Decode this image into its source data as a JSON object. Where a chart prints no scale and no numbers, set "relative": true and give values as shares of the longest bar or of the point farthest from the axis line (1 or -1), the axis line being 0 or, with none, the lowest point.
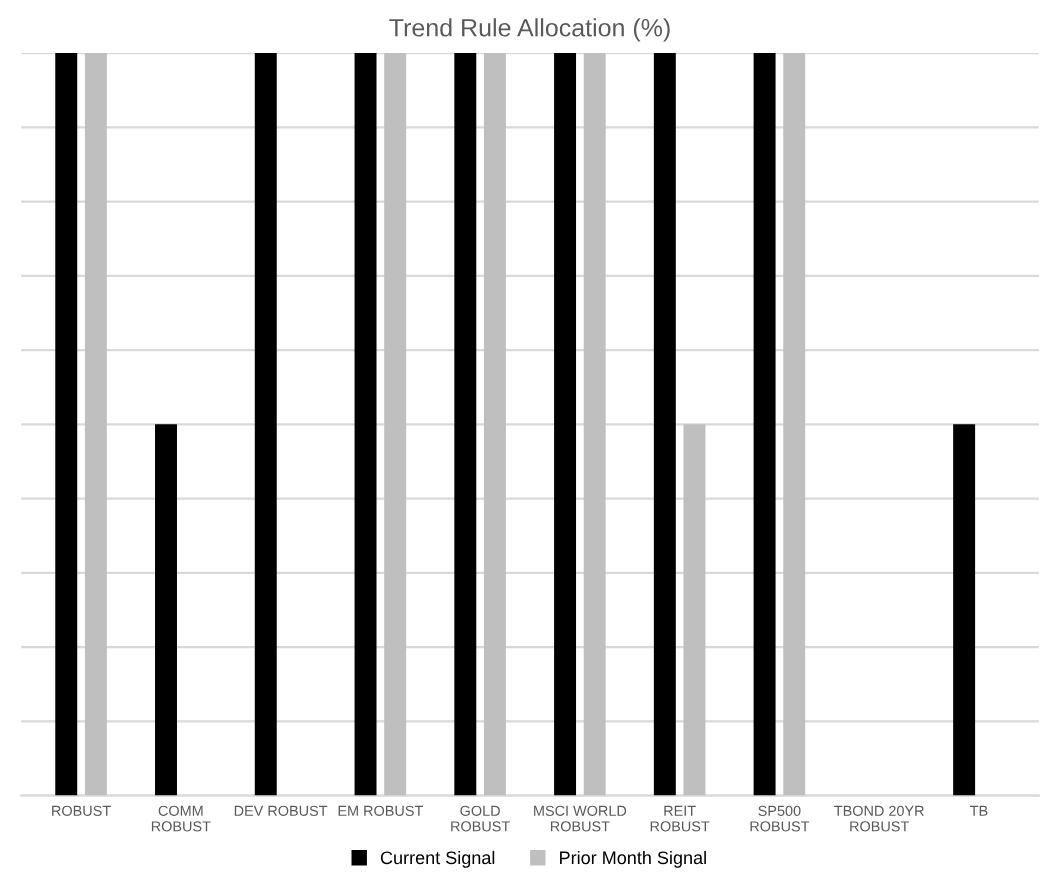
{
  "chart_data": {
    "type": "bar",
    "title": "Trend Rule Allocation (%)",
    "relative": true,
    "grid": "y",
    "legend": "bottom",
    "categories": [
      "ROBUST",
      "COMM ROBUST",
      "DEV ROBUST",
      "EM ROBUST",
      "GOLD ROBUST",
      "MSCI WORLD ROBUST",
      "REIT ROBUST",
      "SP500 ROBUST",
      "TBOND 20YR ROBUST",
      "TB"
    ],
    "series": [
      {
        "name": "Current Signal",
        "color": "#000000",
        "values": [
          1,
          0.5,
          1,
          1,
          1,
          1,
          1,
          1,
          0,
          0.5
        ]
      },
      {
        "name": "Prior Month Signal",
        "color": "#bfbfbf",
        "values": [
          1,
          0,
          0,
          1,
          1,
          1,
          0.5,
          1,
          0,
          null
        ]
      }
    ]
  }
}
